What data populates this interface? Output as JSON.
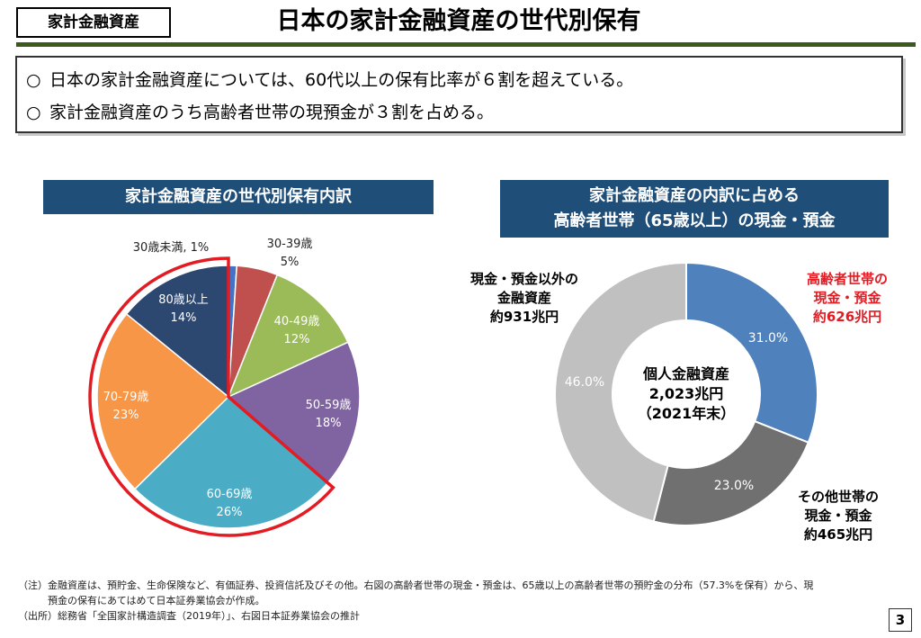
{
  "header": {
    "tag": "家計金融資産",
    "title": "日本の家計金融資産の世代別保有"
  },
  "summary": {
    "bullet": "○",
    "lines": [
      "日本の家計金融資産については、60代以上の保有比率が６割を超えている。",
      "家計金融資産のうち高齢者世帯の現預金が３割を占める。"
    ]
  },
  "colors": {
    "header_rule": "#3d5a1e",
    "panel_title_bg": "#1f4e79",
    "highlight_outline": "#e31b23",
    "highlight_text": "#e31b23"
  },
  "chart_data": [
    {
      "type": "pie",
      "title": "家計金融資産の世代別保有内訳",
      "categories": [
        "30歳未満",
        "30-39歳",
        "40-49歳",
        "50-59歳",
        "60-69歳",
        "70-79歳",
        "80歳以上"
      ],
      "values": [
        1,
        5,
        12,
        18,
        26,
        23,
        14
      ],
      "value_labels": [
        "1%",
        "5%",
        "12%",
        "18%",
        "26%",
        "23%",
        "14%"
      ],
      "colors": [
        "#4472c4",
        "#c0504d",
        "#9bbb59",
        "#8064a2",
        "#4bacc6",
        "#f79646",
        "#2c4770"
      ],
      "highlighted_categories": [
        "60-69歳",
        "70-79歳",
        "80歳以上"
      ]
    },
    {
      "type": "pie",
      "title_lines": [
        "家計金融資産の内訳に占める",
        "高齢者世帯（65歳以上）の現金・預金"
      ],
      "center_label": [
        "個人金融資産",
        "2,023兆円",
        "（2021年末）"
      ],
      "categories": [
        "高齢者世帯の現金・預金",
        "その他世帯の現金・預金",
        "現金・預金以外の金融資産"
      ],
      "category_label_lines": [
        [
          "高齢者世帯の",
          "現金・預金",
          "約626兆円"
        ],
        [
          "その他世帯の",
          "現金・預金",
          "約465兆円"
        ],
        [
          "現金・預金以外の",
          "金融資産",
          "約931兆円"
        ]
      ],
      "values": [
        31.0,
        23.0,
        46.0
      ],
      "value_labels": [
        "31.0%",
        "23.0%",
        "46.0%"
      ],
      "colors": [
        "#4f81bd",
        "#707070",
        "#c0c0c0"
      ]
    }
  ],
  "notes": [
    "（注）金融資産は、預貯金、生命保険など、有価証券、投資信託及びその他。右図の高齢者世帯の現金・預金は、65歳以上の高齢者世帯の預貯金の分布（57.3%を保有）から、現",
    "　　　預金の保有にあてはめて日本証券業協会が作成。",
    "（出所）総務省「全国家計構造調査（2019年）」、右図日本証券業協会の推計"
  ],
  "page_number": "3"
}
